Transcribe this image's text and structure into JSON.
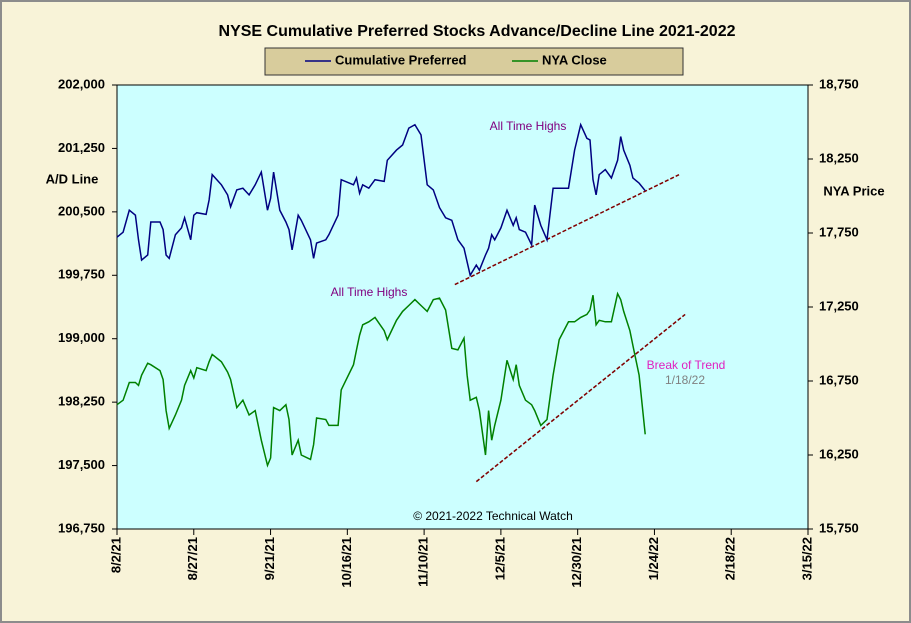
{
  "chart_data": {
    "type": "line",
    "title": "NYSE Cumulative Preferred Stocks Advance/Decline Line 2021-2022",
    "ylabel": "A/D Line",
    "y2label": "NYA Price",
    "legend": "top",
    "x": [
      "2021-08-02",
      "2021-08-04",
      "2021-08-06",
      "2021-08-08",
      "2021-08-09",
      "2021-08-10",
      "2021-08-12",
      "2021-08-13",
      "2021-08-16",
      "2021-08-17",
      "2021-08-18",
      "2021-08-19",
      "2021-08-21",
      "2021-08-23",
      "2021-08-24",
      "2021-08-26",
      "2021-08-27",
      "2021-08-28",
      "2021-08-31",
      "2021-09-01",
      "2021-09-02",
      "2021-09-05",
      "2021-09-07",
      "2021-09-08",
      "2021-09-10",
      "2021-09-12",
      "2021-09-14",
      "2021-09-16",
      "2021-09-18",
      "2021-09-20",
      "2021-09-21",
      "2021-09-22",
      "2021-09-24",
      "2021-09-26",
      "2021-09-27",
      "2021-09-28",
      "2021-09-30",
      "2021-10-01",
      "2021-10-04",
      "2021-10-05",
      "2021-10-06",
      "2021-10-09",
      "2021-10-10",
      "2021-10-13",
      "2021-10-14",
      "2021-10-18",
      "2021-10-19",
      "2021-10-20",
      "2021-10-21",
      "2021-10-23",
      "2021-10-25",
      "2021-10-28",
      "2021-10-29",
      "2021-11-01",
      "2021-11-03",
      "2021-11-05",
      "2021-11-07",
      "2021-11-09",
      "2021-11-11",
      "2021-11-13",
      "2021-11-15",
      "2021-11-17",
      "2021-11-19",
      "2021-11-21",
      "2021-11-23",
      "2021-11-24",
      "2021-11-25",
      "2021-11-27",
      "2021-11-28",
      "2021-11-30",
      "2021-12-01",
      "2021-12-02",
      "2021-12-03",
      "2021-12-05",
      "2021-12-07",
      "2021-12-09",
      "2021-12-10",
      "2021-12-11",
      "2021-12-13",
      "2021-12-15",
      "2021-12-16",
      "2021-12-18",
      "2021-12-20",
      "2021-12-22",
      "2021-12-24",
      "2021-12-27",
      "2021-12-29",
      "2021-12-31",
      "2022-01-02",
      "2022-01-03",
      "2022-01-04",
      "2022-01-05",
      "2022-01-06",
      "2022-01-08",
      "2022-01-10",
      "2022-01-12",
      "2022-01-13",
      "2022-01-14",
      "2022-01-16",
      "2022-01-17",
      "2022-01-19",
      "2022-01-21"
    ],
    "xlim": [
      "2021-08-02",
      "2022-03-15"
    ],
    "xticks": [
      {
        "value": "2021-08-02",
        "label": "8/2/21"
      },
      {
        "value": "2021-08-27",
        "label": "8/27/21"
      },
      {
        "value": "2021-09-21",
        "label": "9/21/21"
      },
      {
        "value": "2021-10-16",
        "label": "10/16/21"
      },
      {
        "value": "2021-11-10",
        "label": "11/10/21"
      },
      {
        "value": "2021-12-05",
        "label": "12/5/21"
      },
      {
        "value": "2021-12-30",
        "label": "12/30/21"
      },
      {
        "value": "2022-01-24",
        "label": "1/24/22"
      },
      {
        "value": "2022-02-18",
        "label": "2/18/22"
      },
      {
        "value": "2022-03-15",
        "label": "3/15/22"
      }
    ],
    "ylim": [
      196750,
      202000
    ],
    "yticks": [
      {
        "value": 196750,
        "label": "196,750"
      },
      {
        "value": 197500,
        "label": "197,500"
      },
      {
        "value": 198250,
        "label": "198,250"
      },
      {
        "value": 199000,
        "label": "199,000"
      },
      {
        "value": 199750,
        "label": "199,750"
      },
      {
        "value": 200500,
        "label": "200,500"
      },
      {
        "value": 201250,
        "label": "201,250"
      },
      {
        "value": 202000,
        "label": "202,000"
      }
    ],
    "y2lim": [
      15750,
      18750
    ],
    "y2ticks": [
      {
        "value": 15750,
        "label": "15,750"
      },
      {
        "value": 16250,
        "label": "16,250"
      },
      {
        "value": 16750,
        "label": "16,750"
      },
      {
        "value": 17250,
        "label": "17,250"
      },
      {
        "value": 17750,
        "label": "17,750"
      },
      {
        "value": 18250,
        "label": "18,250"
      },
      {
        "value": 18750,
        "label": "18,750"
      }
    ],
    "series": [
      {
        "name": "Cumulative Preferred",
        "color": "#000080",
        "values": [
          200200,
          200260,
          200520,
          200460,
          200170,
          199930,
          199990,
          200380,
          200380,
          200290,
          199990,
          199950,
          200230,
          200310,
          200430,
          200170,
          200460,
          200490,
          200470,
          200640,
          200940,
          200820,
          200700,
          200560,
          200760,
          200780,
          200700,
          200820,
          200970,
          200520,
          200660,
          200970,
          200520,
          200380,
          200290,
          200050,
          200460,
          200400,
          200170,
          199950,
          200130,
          200170,
          200230,
          200460,
          200880,
          200820,
          200900,
          200720,
          200820,
          200780,
          200880,
          200860,
          201110,
          201230,
          201290,
          201490,
          201530,
          201410,
          200820,
          200760,
          200550,
          200430,
          200400,
          200170,
          200070,
          199910,
          199750,
          199870,
          199810,
          199990,
          200070,
          200230,
          200170,
          200310,
          200520,
          200340,
          200430,
          200290,
          200260,
          200110,
          200580,
          200340,
          200170,
          200780,
          200780,
          200780,
          201230,
          201530,
          201370,
          201350,
          200880,
          200700,
          200940,
          201000,
          200900,
          201110,
          201390,
          201230,
          201050,
          200900,
          200840,
          200750
        ]
      },
      {
        "name": "NYA Close",
        "color": "#008000",
        "axis": "y2",
        "values": [
          16590,
          16620,
          16740,
          16740,
          16720,
          16790,
          16870,
          16860,
          16820,
          16760,
          16550,
          16430,
          16520,
          16620,
          16720,
          16820,
          16770,
          16840,
          16820,
          16880,
          16930,
          16880,
          16810,
          16760,
          16570,
          16620,
          16520,
          16550,
          16350,
          16180,
          16230,
          16570,
          16550,
          16590,
          16490,
          16250,
          16350,
          16250,
          16220,
          16320,
          16500,
          16490,
          16450,
          16450,
          16690,
          16860,
          16960,
          17060,
          17130,
          17150,
          17180,
          17090,
          17030,
          17160,
          17220,
          17260,
          17300,
          17260,
          17220,
          17300,
          17310,
          17230,
          16970,
          16960,
          17040,
          16790,
          16620,
          16640,
          16550,
          16250,
          16550,
          16350,
          16450,
          16620,
          16890,
          16760,
          16860,
          16720,
          16620,
          16590,
          16550,
          16450,
          16490,
          16790,
          17030,
          17150,
          17150,
          17180,
          17200,
          17230,
          17330,
          17130,
          17160,
          17150,
          17150,
          17340,
          17300,
          17220,
          17090,
          16990,
          16790,
          16390
        ]
      }
    ],
    "trendlines": [
      {
        "color": "#800000",
        "x": [
          "2021-11-20",
          "2022-02-01"
        ],
        "values": [
          199640,
          200940
        ]
      },
      {
        "color": "#800000",
        "axis": "y2",
        "x": [
          "2021-11-27",
          "2022-02-03"
        ],
        "values": [
          16070,
          17200
        ]
      }
    ],
    "annotations": [
      "All Time Highs",
      "All Time Highs",
      "Break of Trend",
      "1/18/22",
      "© 2021-2022 Technical Watch"
    ]
  }
}
